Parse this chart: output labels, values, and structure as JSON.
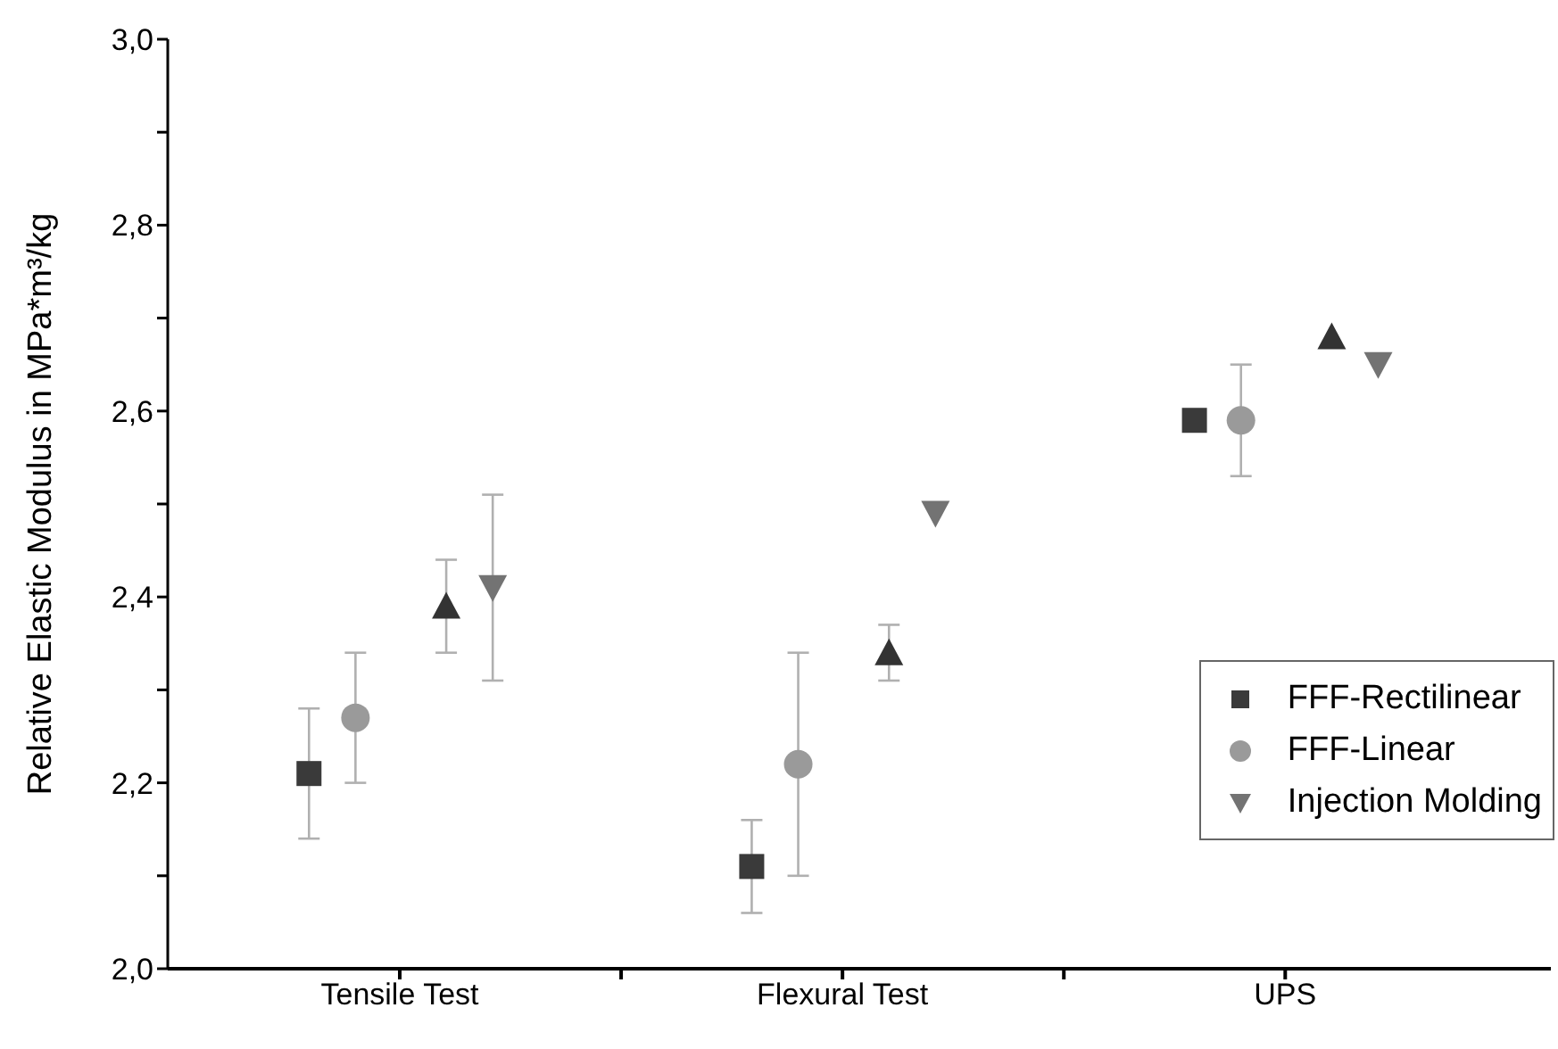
{
  "chart_data": {
    "type": "scatter",
    "ylabel": "Relative Elastic Modulus in MPa*m³/kg",
    "categories": [
      "Tensile Test",
      "Flexural Test",
      "UPS"
    ],
    "ylim": [
      2.0,
      3.0
    ],
    "yticks": [
      {
        "value": 2.0,
        "label": "2,0"
      },
      {
        "value": 2.1,
        "label": null
      },
      {
        "value": 2.2,
        "label": "2,2"
      },
      {
        "value": 2.3,
        "label": null
      },
      {
        "value": 2.4,
        "label": "2,4"
      },
      {
        "value": 2.5,
        "label": null
      },
      {
        "value": 2.6,
        "label": "2,6"
      },
      {
        "value": 2.7,
        "label": null
      },
      {
        "value": 2.8,
        "label": "2,8"
      },
      {
        "value": 2.9,
        "label": null
      },
      {
        "value": 3.0,
        "label": "3,0"
      }
    ],
    "legend": "bottom right",
    "grid": false,
    "series": [
      {
        "name": "FFF-Rectilinear",
        "color": "#3a3a3a",
        "marker": "square",
        "values": [
          2.21,
          2.11,
          2.59
        ],
        "errors": [
          [
            2.14,
            2.28
          ],
          [
            2.06,
            2.16
          ],
          [
            2.58,
            2.6
          ]
        ]
      },
      {
        "name": "FFF-Linear",
        "color": "#9a9a9a",
        "marker": "circle",
        "values": [
          2.27,
          2.22,
          2.59
        ],
        "errors": [
          [
            2.2,
            2.34
          ],
          [
            2.1,
            2.34
          ],
          [
            2.53,
            2.65
          ]
        ]
      },
      {
        "color": "#333333",
        "marker": "triangle",
        "values": [
          2.39,
          2.34,
          2.68
        ],
        "errors": [
          [
            2.34,
            2.44
          ],
          [
            2.31,
            2.37
          ],
          null
        ]
      },
      {
        "name": "Injection Molding",
        "color": "#737373",
        "marker": "triangle-down",
        "values": [
          2.41,
          2.49,
          2.65
        ],
        "errors": [
          [
            2.31,
            2.51
          ],
          null,
          null
        ]
      }
    ]
  }
}
